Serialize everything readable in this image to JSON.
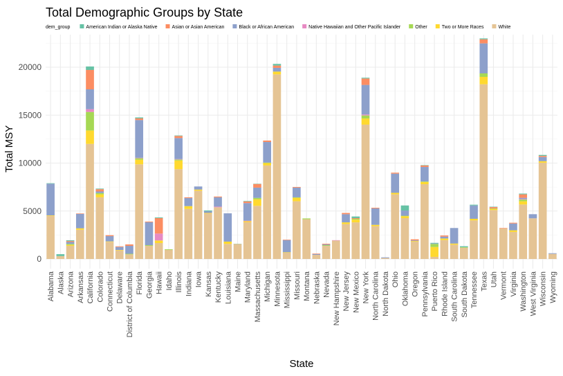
{
  "chart_data": {
    "type": "bar",
    "stacked": true,
    "title": "Total Demographic Groups by State",
    "xlabel": "State",
    "ylabel": "Total MSY",
    "ylim": [
      0,
      23000
    ],
    "yticks": [
      0,
      5000,
      10000,
      15000,
      20000
    ],
    "grid": true,
    "legend": {
      "title": "dem_group",
      "position": "right"
    },
    "categories": [
      "Alabama",
      "Alaska",
      "Arizona",
      "Arkansas",
      "California",
      "Colorado",
      "Connecticut",
      "Delaware",
      "District of Columbia",
      "Florida",
      "Georgia",
      "Hawaii",
      "Idaho",
      "Illinois",
      "Indiana",
      "Iowa",
      "Kansas",
      "Kentucky",
      "Louisiana",
      "Maine",
      "Maryland",
      "Massachusetts",
      "Michigan",
      "Minnesota",
      "Mississippi",
      "Missouri",
      "Montana",
      "Nebraska",
      "Nevada",
      "New Hampshire",
      "New Jersey",
      "New Mexico",
      "New York",
      "North Carolina",
      "North Dakota",
      "Ohio",
      "Oklahoma",
      "Oregon",
      "Pennsylvania",
      "Puerto Rico",
      "Rhode Island",
      "South Carolina",
      "South Dakota",
      "Tennessee",
      "Texas",
      "Utah",
      "Vermont",
      "Virginia",
      "Washington",
      "West Virginia",
      "Wisconsin",
      "Wyoming"
    ],
    "series": [
      {
        "name": "White",
        "color": "#E5C494",
        "values": [
          4500,
          300,
          1370,
          3050,
          12000,
          6430,
          1780,
          890,
          480,
          9870,
          1370,
          1660,
          940,
          9360,
          5220,
          7120,
          4740,
          5390,
          1570,
          1570,
          3830,
          5540,
          9750,
          19250,
          650,
          6020,
          4140,
          430,
          1370,
          1920,
          3640,
          3820,
          14010,
          3420,
          100,
          6740,
          4260,
          1800,
          7800,
          220,
          1970,
          1490,
          1180,
          4020,
          18220,
          5100,
          3180,
          2820,
          5680,
          4240,
          10040,
          530
        ]
      },
      {
        "name": "Two or More Races",
        "color": "#FFD92F",
        "values": [
          50,
          0,
          100,
          150,
          1400,
          310,
          50,
          50,
          0,
          480,
          0,
          270,
          0,
          910,
          290,
          120,
          60,
          0,
          240,
          0,
          110,
          690,
          250,
          290,
          50,
          360,
          0,
          0,
          0,
          0,
          180,
          280,
          640,
          140,
          0,
          160,
          200,
          70,
          230,
          1030,
          170,
          120,
          0,
          170,
          770,
          120,
          0,
          170,
          340,
          0,
          160,
          0
        ]
      },
      {
        "name": "Other",
        "color": "#A6D854",
        "values": [
          0,
          0,
          100,
          0,
          1930,
          140,
          0,
          0,
          60,
          150,
          70,
          0,
          70,
          100,
          0,
          0,
          0,
          0,
          0,
          0,
          0,
          140,
          50,
          0,
          0,
          50,
          90,
          0,
          70,
          0,
          0,
          90,
          320,
          0,
          0,
          0,
          50,
          0,
          50,
          320,
          0,
          0,
          50,
          0,
          360,
          50,
          0,
          0,
          180,
          0,
          0,
          0
        ]
      },
      {
        "name": "Native Hawaiian and Other Pacific Islander",
        "color": "#E78AC3",
        "values": [
          0,
          0,
          0,
          0,
          290,
          0,
          0,
          0,
          0,
          50,
          0,
          720,
          0,
          50,
          0,
          0,
          0,
          70,
          0,
          0,
          50,
          0,
          0,
          0,
          0,
          0,
          0,
          0,
          0,
          40,
          0,
          0,
          100,
          0,
          0,
          0,
          0,
          0,
          0,
          0,
          0,
          0,
          0,
          0,
          0,
          0,
          0,
          0,
          60,
          0,
          0,
          0
        ]
      },
      {
        "name": "Black or African American",
        "color": "#8DA0CB",
        "values": [
          3300,
          0,
          200,
          1500,
          2070,
          160,
          550,
          310,
          830,
          3940,
          2390,
          0,
          0,
          2190,
          840,
          320,
          180,
          970,
          2950,
          0,
          1840,
          1070,
          2150,
          390,
          1270,
          1010,
          0,
          90,
          80,
          0,
          850,
          0,
          3080,
          1710,
          70,
          2000,
          540,
          70,
          1520,
          50,
          190,
          1620,
          0,
          1390,
          3130,
          0,
          0,
          710,
          120,
          430,
          430,
          70
        ]
      },
      {
        "name": "Asian or Asian American",
        "color": "#FC8D62",
        "values": [
          0,
          0,
          100,
          50,
          2020,
          240,
          100,
          70,
          150,
          170,
          70,
          1610,
          0,
          220,
          80,
          0,
          0,
          80,
          0,
          0,
          170,
          380,
          150,
          240,
          50,
          70,
          0,
          50,
          70,
          0,
          130,
          70,
          670,
          70,
          0,
          100,
          0,
          110,
          150,
          0,
          120,
          0,
          0,
          0,
          430,
          140,
          50,
          80,
          360,
          0,
          120,
          0
        ]
      },
      {
        "name": "American Indian or Alaska Native",
        "color": "#66C2A5",
        "values": [
          50,
          200,
          80,
          0,
          360,
          60,
          0,
          0,
          0,
          100,
          0,
          70,
          0,
          50,
          0,
          0,
          80,
          0,
          0,
          20,
          50,
          30,
          0,
          170,
          0,
          0,
          0,
          0,
          0,
          0,
          0,
          170,
          80,
          0,
          0,
          0,
          530,
          0,
          40,
          60,
          0,
          0,
          100,
          80,
          90,
          40,
          0,
          0,
          80,
          0,
          100,
          0
        ]
      }
    ],
    "legend_labels": [
      "American Indian or Alaska Native",
      "Asian or Asian American",
      "Black or African American",
      "Native Hawaiian and Other Pacific Islander",
      "Other",
      "Two or More Races",
      "White"
    ]
  }
}
